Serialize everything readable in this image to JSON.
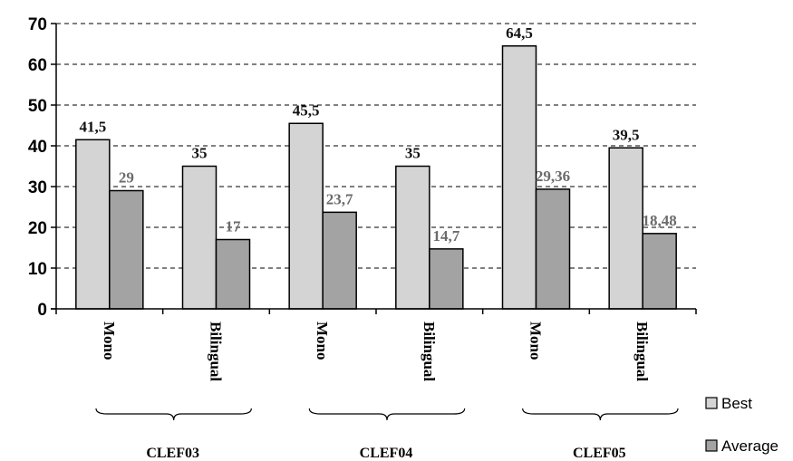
{
  "chart_data": {
    "type": "bar",
    "categories": [
      "Mono",
      "Bilingual",
      "Mono",
      "Bilingual",
      "Mono",
      "Bilingual"
    ],
    "groups": [
      "CLEF03",
      "CLEF04",
      "CLEF05"
    ],
    "series": [
      {
        "name": "Best",
        "values": [
          41.5,
          35,
          45.5,
          35,
          64.5,
          39.5
        ],
        "labels": [
          "41,5",
          "35",
          "45,5",
          "35",
          "64,5",
          "39,5"
        ],
        "color": "#d4d4d4"
      },
      {
        "name": "Average",
        "values": [
          29,
          17,
          23.7,
          14.7,
          29.36,
          18.48
        ],
        "labels": [
          "29",
          "17",
          "23,7",
          "14,7",
          "29,36",
          "18,48"
        ],
        "color": "#a3a3a3"
      }
    ],
    "ylim": [
      0,
      70
    ],
    "yticks": [
      0,
      10,
      20,
      30,
      40,
      50,
      60,
      70
    ],
    "grid": true,
    "legend_position": "right-bottom"
  }
}
